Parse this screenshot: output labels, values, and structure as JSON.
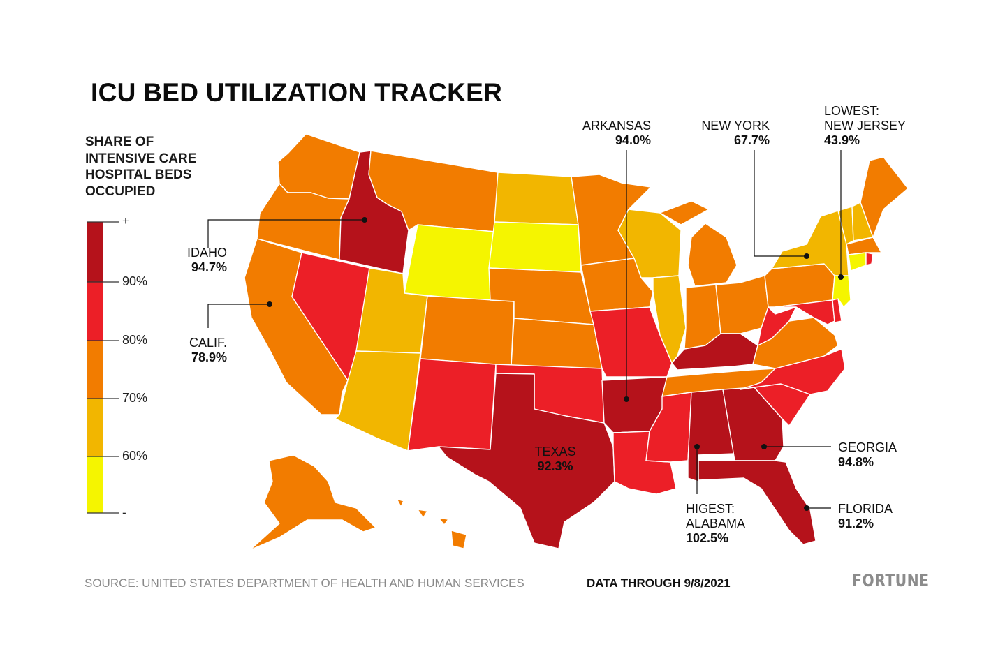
{
  "title": "ICU BED UTILIZATION TRACKER",
  "legend": {
    "title_lines": [
      "SHARE OF",
      "INTENSIVE CARE",
      "HOSPITAL BEDS",
      "OCCUPIED"
    ],
    "top_label": "+",
    "bottom_label": "-",
    "ticks": [
      {
        "label": "90%",
        "value": 90
      },
      {
        "label": "80%",
        "value": 80
      },
      {
        "label": "70%",
        "value": 70
      },
      {
        "label": "60%",
        "value": 60
      }
    ],
    "bins": [
      {
        "range": "90%+",
        "color": "#b5121b"
      },
      {
        "range": "80-90%",
        "color": "#ec1f27"
      },
      {
        "range": "70-80%",
        "color": "#f27c00"
      },
      {
        "range": "60-70%",
        "color": "#f2b600"
      },
      {
        "range": "<60%",
        "color": "#f5f500"
      }
    ]
  },
  "callouts": {
    "idaho": {
      "name": "IDAHO",
      "value": "94.7%"
    },
    "calif": {
      "name": "CALIF.",
      "value": "78.9%"
    },
    "arkansas": {
      "name": "ARKANSAS",
      "value": "94.0%"
    },
    "new_york": {
      "name": "NEW YORK",
      "value": "67.7%"
    },
    "new_jersey": {
      "name_lines": [
        "LOWEST:",
        "NEW JERSEY"
      ],
      "value": "43.9%"
    },
    "texas": {
      "name": "TEXAS",
      "value": "92.3%"
    },
    "georgia": {
      "name": "GEORGIA",
      "value": "94.8%"
    },
    "alabama": {
      "name_lines": [
        "HIGEST:",
        "ALABAMA"
      ],
      "value": "102.5%"
    },
    "florida": {
      "name": "FLORIDA",
      "value": "91.2%"
    }
  },
  "footer": {
    "source": "SOURCE: UNITED STATES DEPARTMENT OF HEALTH AND HUMAN SERVICES",
    "data_through": "DATA THROUGH 9/8/2021",
    "brand": "FORTUNE"
  },
  "states": [
    {
      "name": "WA",
      "color": "#f27c00"
    },
    {
      "name": "OR",
      "color": "#f27c00"
    },
    {
      "name": "CA",
      "color": "#f27c00"
    },
    {
      "name": "ID",
      "color": "#b5121b"
    },
    {
      "name": "NV",
      "color": "#ec1f27"
    },
    {
      "name": "MT",
      "color": "#f27c00"
    },
    {
      "name": "WY",
      "color": "#f5f500"
    },
    {
      "name": "UT",
      "color": "#f2b600"
    },
    {
      "name": "AZ",
      "color": "#f2b600"
    },
    {
      "name": "CO",
      "color": "#f27c00"
    },
    {
      "name": "NM",
      "color": "#ec1f27"
    },
    {
      "name": "ND",
      "color": "#f2b600"
    },
    {
      "name": "SD",
      "color": "#f5f500"
    },
    {
      "name": "NE",
      "color": "#f27c00"
    },
    {
      "name": "KS",
      "color": "#f27c00"
    },
    {
      "name": "OK",
      "color": "#ec1f27"
    },
    {
      "name": "TX",
      "color": "#b5121b"
    },
    {
      "name": "MN",
      "color": "#f27c00"
    },
    {
      "name": "IA",
      "color": "#f27c00"
    },
    {
      "name": "MO",
      "color": "#ec1f27"
    },
    {
      "name": "AR",
      "color": "#b5121b"
    },
    {
      "name": "LA",
      "color": "#ec1f27"
    },
    {
      "name": "WI",
      "color": "#f2b600"
    },
    {
      "name": "IL",
      "color": "#f2b600"
    },
    {
      "name": "MI",
      "color": "#f27c00"
    },
    {
      "name": "IN",
      "color": "#f27c00"
    },
    {
      "name": "OH",
      "color": "#f27c00"
    },
    {
      "name": "KY",
      "color": "#b5121b"
    },
    {
      "name": "TN",
      "color": "#f27c00"
    },
    {
      "name": "MS",
      "color": "#ec1f27"
    },
    {
      "name": "AL",
      "color": "#b5121b"
    },
    {
      "name": "GA",
      "color": "#b5121b"
    },
    {
      "name": "FL",
      "color": "#b5121b"
    },
    {
      "name": "SC",
      "color": "#ec1f27"
    },
    {
      "name": "NC",
      "color": "#ec1f27"
    },
    {
      "name": "VA",
      "color": "#f27c00"
    },
    {
      "name": "WV",
      "color": "#ec1f27"
    },
    {
      "name": "PA",
      "color": "#f27c00"
    },
    {
      "name": "NY",
      "color": "#f2b600"
    },
    {
      "name": "NJ",
      "color": "#f5f500"
    },
    {
      "name": "DE",
      "color": "#ec1f27"
    },
    {
      "name": "MD",
      "color": "#ec1f27"
    },
    {
      "name": "VT",
      "color": "#f2b600"
    },
    {
      "name": "NH",
      "color": "#f2b600"
    },
    {
      "name": "ME",
      "color": "#f27c00"
    },
    {
      "name": "MA",
      "color": "#f27c00"
    },
    {
      "name": "CT",
      "color": "#f5f500"
    },
    {
      "name": "RI",
      "color": "#ec1f27"
    },
    {
      "name": "AK",
      "color": "#f27c00"
    },
    {
      "name": "HI",
      "color": "#f27c00"
    }
  ]
}
